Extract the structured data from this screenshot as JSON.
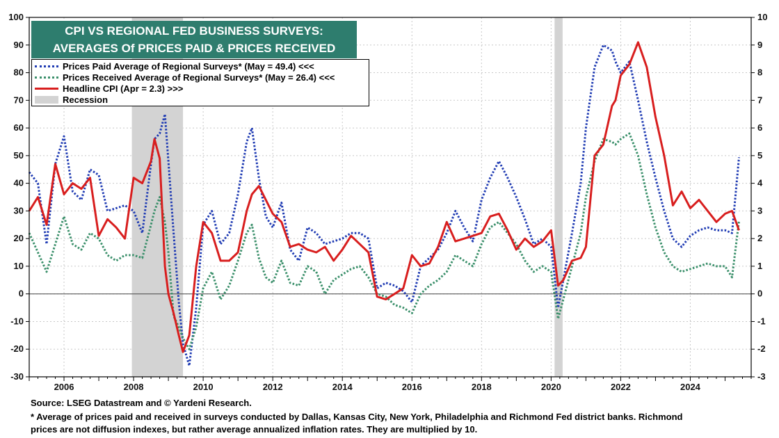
{
  "chart_data": {
    "type": "line",
    "title_lines": [
      "CPI VS REGIONAL FED BUSINESS SURVEYS:",
      "AVERAGES Of PRICES PAID & PRICES RECEIVED"
    ],
    "left_axis": {
      "min": -30,
      "max": 100,
      "step": 10,
      "ticks": [
        "-30",
        "-20",
        "-10",
        "0",
        "10",
        "20",
        "30",
        "40",
        "50",
        "60",
        "70",
        "80",
        "90",
        "100"
      ]
    },
    "right_axis": {
      "min": -3,
      "max": 10,
      "step": 1,
      "ticks": [
        "-3",
        "-2",
        "-1",
        "0",
        "1",
        "2",
        "3",
        "4",
        "5",
        "6",
        "7",
        "8",
        "9",
        "10"
      ]
    },
    "x_axis": {
      "min": 2005,
      "max": 2025.75,
      "tick_labels": [
        "2006",
        "2008",
        "2010",
        "2012",
        "2014",
        "2016",
        "2018",
        "2020",
        "2022",
        "2024"
      ],
      "tick_years": [
        2006,
        2008,
        2010,
        2012,
        2014,
        2016,
        2018,
        2020,
        2022,
        2024
      ]
    },
    "grid": true,
    "legend_position": "top-left",
    "recessions": [
      [
        2007.95,
        2009.42
      ],
      [
        2020.1,
        2020.33
      ]
    ],
    "colors": {
      "prices_paid": "#1f3bb3",
      "prices_received": "#3a8f6a",
      "cpi": "#d81e1e",
      "recession": "#d3d3d3",
      "title_bg": "#2e7d6e"
    },
    "legend": [
      {
        "label": "Prices Paid Average of Regional Surveys* (May = 49.4) <<<",
        "style": "dotted-blue"
      },
      {
        "label": "Prices Received Average of Regional Surveys* (May = 26.4) <<<",
        "style": "dotted-green"
      },
      {
        "label": "Headline CPI (Apr = 2.3) >>>",
        "style": "solid-red"
      },
      {
        "label": "Recession",
        "style": "recession"
      }
    ],
    "series": [
      {
        "name": "Prices Paid Average of Regional Surveys* (May = 49.4)",
        "axis": "left",
        "x": [
          2005.0,
          2005.25,
          2005.5,
          2005.75,
          2006.0,
          2006.25,
          2006.5,
          2006.75,
          2007.0,
          2007.25,
          2007.5,
          2007.75,
          2008.0,
          2008.25,
          2008.5,
          2008.6,
          2008.75,
          2008.9,
          2009.0,
          2009.15,
          2009.3,
          2009.42,
          2009.6,
          2009.8,
          2010.0,
          2010.25,
          2010.5,
          2010.75,
          2011.0,
          2011.25,
          2011.4,
          2011.6,
          2011.8,
          2012.0,
          2012.25,
          2012.5,
          2012.75,
          2013.0,
          2013.25,
          2013.5,
          2013.75,
          2014.0,
          2014.25,
          2014.5,
          2014.75,
          2015.0,
          2015.25,
          2015.5,
          2015.75,
          2016.0,
          2016.25,
          2016.5,
          2016.75,
          2017.0,
          2017.25,
          2017.5,
          2017.75,
          2018.0,
          2018.25,
          2018.5,
          2018.75,
          2019.0,
          2019.25,
          2019.5,
          2019.75,
          2020.0,
          2020.2,
          2020.35,
          2020.6,
          2020.85,
          2021.0,
          2021.25,
          2021.5,
          2021.75,
          2021.85,
          2022.0,
          2022.25,
          2022.5,
          2022.75,
          2023.0,
          2023.25,
          2023.5,
          2023.75,
          2024.0,
          2024.25,
          2024.5,
          2024.75,
          2025.0,
          2025.2,
          2025.4
        ],
        "values": [
          44,
          40,
          18,
          47,
          57,
          37,
          34,
          45,
          43,
          30,
          31,
          32,
          30,
          22,
          47,
          56,
          58,
          65,
          48,
          22,
          -3,
          -18,
          -26,
          -5,
          25,
          30,
          18,
          22,
          36,
          55,
          60,
          42,
          28,
          24,
          33,
          16,
          12,
          24,
          22,
          18,
          19,
          20,
          22,
          22,
          20,
          2,
          4,
          3,
          1,
          -3,
          10,
          13,
          16,
          22,
          30,
          24,
          19,
          34,
          42,
          48,
          42,
          35,
          27,
          18,
          20,
          17,
          -5,
          5,
          22,
          40,
          60,
          82,
          90,
          88,
          84,
          80,
          84,
          70,
          55,
          42,
          30,
          20,
          17,
          21,
          23,
          24,
          23,
          23,
          22,
          49.4
        ]
      },
      {
        "name": "Prices Received Average of Regional Surveys* (May = 26.4)",
        "axis": "left",
        "x": [
          2005.0,
          2005.25,
          2005.5,
          2005.75,
          2006.0,
          2006.25,
          2006.5,
          2006.75,
          2007.0,
          2007.25,
          2007.5,
          2007.75,
          2008.0,
          2008.25,
          2008.5,
          2008.6,
          2008.75,
          2008.9,
          2009.0,
          2009.15,
          2009.3,
          2009.42,
          2009.6,
          2009.8,
          2010.0,
          2010.25,
          2010.5,
          2010.75,
          2011.0,
          2011.25,
          2011.4,
          2011.6,
          2011.8,
          2012.0,
          2012.25,
          2012.5,
          2012.75,
          2013.0,
          2013.25,
          2013.5,
          2013.75,
          2014.0,
          2014.25,
          2014.5,
          2014.75,
          2015.0,
          2015.25,
          2015.5,
          2015.75,
          2016.0,
          2016.25,
          2016.5,
          2016.75,
          2017.0,
          2017.25,
          2017.5,
          2017.75,
          2018.0,
          2018.25,
          2018.5,
          2018.75,
          2019.0,
          2019.25,
          2019.5,
          2019.75,
          2020.0,
          2020.2,
          2020.35,
          2020.6,
          2020.85,
          2021.0,
          2021.25,
          2021.5,
          2021.75,
          2021.85,
          2022.0,
          2022.25,
          2022.5,
          2022.75,
          2023.0,
          2023.25,
          2023.5,
          2023.75,
          2024.0,
          2024.25,
          2024.5,
          2024.75,
          2025.0,
          2025.2,
          2025.4
        ],
        "values": [
          22,
          15,
          8,
          18,
          28,
          18,
          16,
          22,
          20,
          14,
          12,
          14,
          14,
          13,
          25,
          30,
          35,
          26,
          15,
          -8,
          -12,
          -16,
          -20,
          -12,
          2,
          8,
          -2,
          3,
          12,
          22,
          25,
          13,
          6,
          4,
          12,
          4,
          3,
          10,
          8,
          0,
          5,
          7,
          9,
          10,
          6,
          0,
          -1,
          -4,
          -5,
          -7,
          0,
          3,
          5,
          8,
          14,
          12,
          10,
          18,
          24,
          26,
          22,
          18,
          12,
          8,
          10,
          8,
          -9,
          -2,
          10,
          22,
          35,
          48,
          56,
          55,
          54,
          56,
          58,
          50,
          36,
          24,
          15,
          10,
          8,
          9,
          10,
          11,
          10,
          10,
          6,
          26.4
        ]
      },
      {
        "name": "Headline CPI (Apr = 2.3)",
        "axis": "right",
        "x": [
          2005.0,
          2005.25,
          2005.5,
          2005.75,
          2006.0,
          2006.25,
          2006.5,
          2006.75,
          2007.0,
          2007.25,
          2007.5,
          2007.75,
          2008.0,
          2008.25,
          2008.5,
          2008.6,
          2008.75,
          2008.9,
          2009.0,
          2009.15,
          2009.3,
          2009.42,
          2009.6,
          2009.8,
          2010.0,
          2010.25,
          2010.5,
          2010.75,
          2011.0,
          2011.25,
          2011.4,
          2011.6,
          2011.8,
          2012.0,
          2012.25,
          2012.5,
          2012.75,
          2013.0,
          2013.25,
          2013.5,
          2013.75,
          2014.0,
          2014.25,
          2014.5,
          2014.75,
          2015.0,
          2015.25,
          2015.5,
          2015.75,
          2016.0,
          2016.25,
          2016.5,
          2016.75,
          2017.0,
          2017.25,
          2017.5,
          2017.75,
          2018.0,
          2018.25,
          2018.5,
          2018.75,
          2019.0,
          2019.25,
          2019.5,
          2019.75,
          2020.0,
          2020.2,
          2020.35,
          2020.6,
          2020.85,
          2021.0,
          2021.25,
          2021.5,
          2021.75,
          2021.85,
          2022.0,
          2022.25,
          2022.5,
          2022.75,
          2023.0,
          2023.25,
          2023.5,
          2023.75,
          2024.0,
          2024.25,
          2024.5,
          2024.75,
          2025.0,
          2025.2,
          2025.4
        ],
        "values": [
          3.0,
          3.5,
          2.5,
          4.7,
          3.6,
          4.0,
          3.8,
          4.2,
          2.1,
          2.7,
          2.4,
          2.0,
          4.2,
          4.0,
          4.8,
          5.6,
          4.9,
          1.0,
          0.0,
          -0.7,
          -1.5,
          -2.1,
          -1.5,
          1.0,
          2.6,
          2.2,
          1.2,
          1.2,
          1.5,
          3.0,
          3.6,
          3.9,
          3.4,
          2.9,
          2.6,
          1.7,
          1.8,
          1.6,
          1.5,
          1.7,
          1.2,
          1.6,
          2.1,
          1.8,
          1.5,
          -0.1,
          -0.2,
          0.0,
          0.2,
          1.4,
          1.0,
          1.1,
          1.7,
          2.6,
          1.9,
          2.0,
          2.1,
          2.2,
          2.8,
          2.9,
          2.3,
          1.6,
          2.0,
          1.7,
          1.9,
          2.3,
          0.3,
          0.5,
          1.2,
          1.3,
          1.7,
          5.0,
          5.4,
          6.8,
          7.0,
          7.9,
          8.3,
          9.1,
          8.2,
          6.4,
          5.0,
          3.2,
          3.7,
          3.1,
          3.4,
          3.0,
          2.6,
          2.9,
          3.0,
          2.3
        ]
      }
    ],
    "footer": {
      "source": "Source: LSEG Datastream and © Yardeni Research.",
      "note_line1": "* Average of prices paid and received in surveys conducted by Dallas, Kansas City, New York, Philadelphia and Richmond Fed district banks. Richmond",
      "note_line2": "prices are not diffusion indexes, but rather average annualized inflation rates. They are multiplied by 10."
    }
  }
}
